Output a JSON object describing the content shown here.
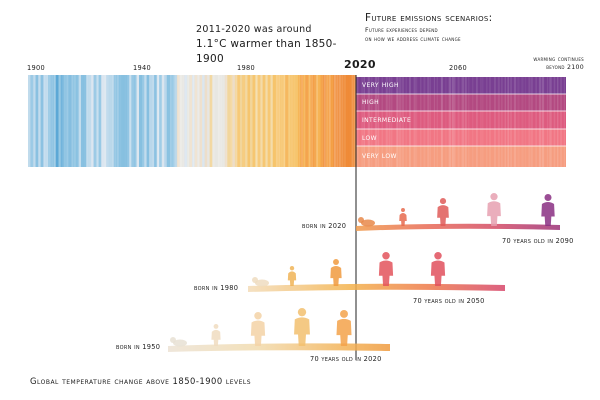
{
  "note_warming": {
    "line1": "2011-2020 was around",
    "line2": "1.1°C warmer than 1850-1900"
  },
  "scenarios_title": "Future emissions scenarios:",
  "scenarios_subtitle": {
    "line1": "Future experiences depend",
    "line2": "on how we address climate change"
  },
  "beyond_note": {
    "line1": "warming continues",
    "line2": "beyond 2100"
  },
  "axis_years": [
    "1900",
    "1940",
    "1980",
    "2020",
    "2060"
  ],
  "scenarios": [
    "very high",
    "high",
    "intermediate",
    "low",
    "very low"
  ],
  "scenario_colors": [
    "#6a2a86",
    "#a83070",
    "#d9406a",
    "#ef5e6e",
    "#f48c6a"
  ],
  "generations": [
    {
      "born": "born in 2020",
      "old": "70 years old in 2090"
    },
    {
      "born": "born in 1980",
      "old": "70 years old in 2050"
    },
    {
      "born": "born in 1950",
      "old": "70 years old in 2020"
    }
  ],
  "footer": "Global temperature change above 1850-1900 levels"
}
